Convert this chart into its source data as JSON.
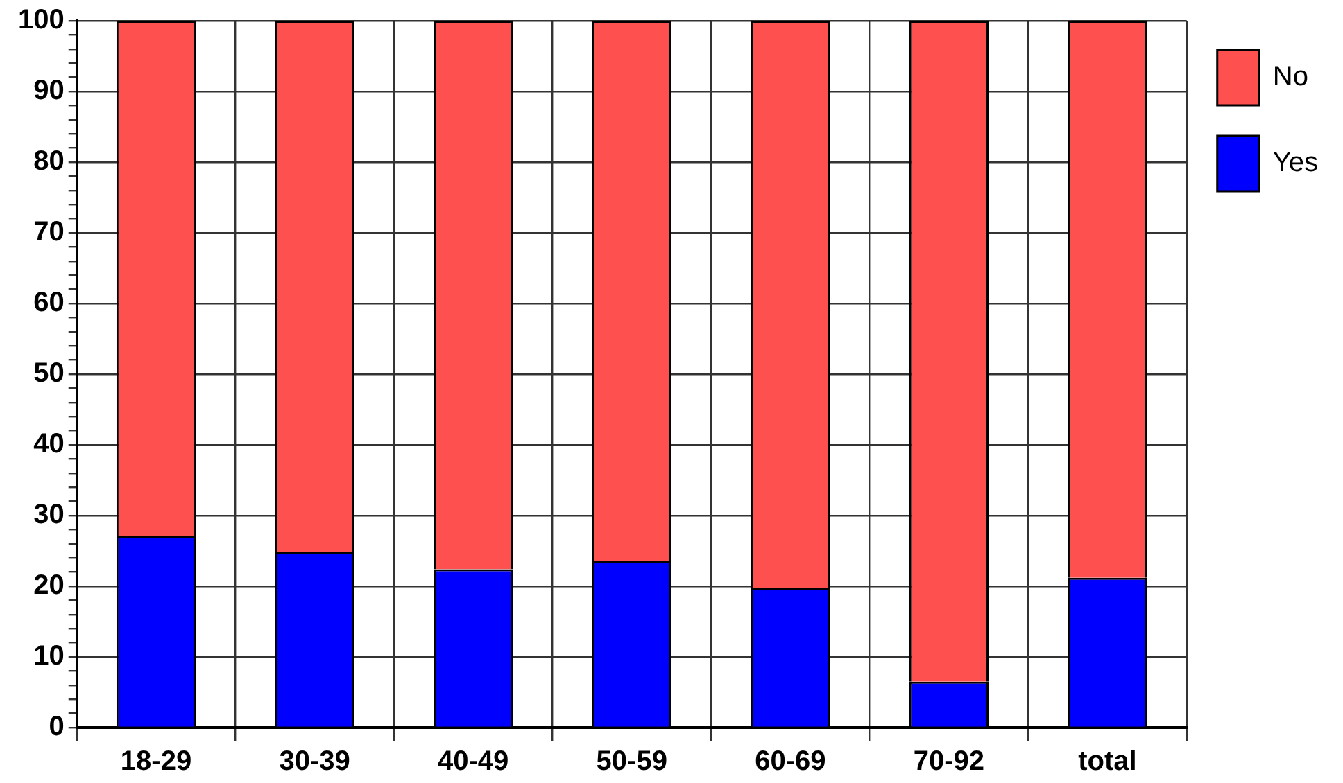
{
  "chart_data": {
    "type": "bar",
    "stacked": true,
    "categories": [
      "18-29",
      "30-39",
      "40-49",
      "50-59",
      "60-69",
      "70-92",
      "total"
    ],
    "series": [
      {
        "name": "Yes",
        "color": "#0000ff",
        "values": [
          27.1,
          24.9,
          22.4,
          23.6,
          19.8,
          6.5,
          21.2
        ]
      },
      {
        "name": "No",
        "color": "#ff5050",
        "values": [
          72.9,
          75.1,
          77.6,
          76.4,
          80.2,
          93.5,
          78.8
        ]
      }
    ],
    "ylim": [
      0,
      100
    ],
    "yticks": [
      0,
      {
        "value": 2,
        "label": null
      },
      {
        "value": 4,
        "label": null
      },
      {
        "value": 6,
        "label": null
      },
      {
        "value": 8,
        "label": null
      },
      10,
      {
        "value": 12,
        "label": null
      },
      {
        "value": 14,
        "label": null
      },
      {
        "value": 16,
        "label": null
      },
      {
        "value": 18,
        "label": null
      },
      20,
      {
        "value": 22,
        "label": null
      },
      {
        "value": 24,
        "label": null
      },
      {
        "value": 26,
        "label": null
      },
      {
        "value": 28,
        "label": null
      },
      30,
      {
        "value": 32,
        "label": null
      },
      {
        "value": 34,
        "label": null
      },
      {
        "value": 36,
        "label": null
      },
      {
        "value": 38,
        "label": null
      },
      40,
      {
        "value": 42,
        "label": null
      },
      {
        "value": 44,
        "label": null
      },
      {
        "value": 46,
        "label": null
      },
      {
        "value": 48,
        "label": null
      },
      50,
      {
        "value": 52,
        "label": null
      },
      {
        "value": 54,
        "label": null
      },
      {
        "value": 56,
        "label": null
      },
      {
        "value": 58,
        "label": null
      },
      60,
      {
        "value": 62,
        "label": null
      },
      {
        "value": 64,
        "label": null
      },
      {
        "value": 66,
        "label": null
      },
      {
        "value": 68,
        "label": null
      },
      70,
      {
        "value": 72,
        "label": null
      },
      {
        "value": 74,
        "label": null
      },
      {
        "value": 76,
        "label": null
      },
      {
        "value": 78,
        "label": null
      },
      80,
      {
        "value": 82,
        "label": null
      },
      {
        "value": 84,
        "label": null
      },
      {
        "value": 86,
        "label": null
      },
      {
        "value": 88,
        "label": null
      },
      90,
      {
        "value": 92,
        "label": null
      },
      {
        "value": 94,
        "label": null
      },
      {
        "value": 96,
        "label": null
      },
      {
        "value": 98,
        "label": null
      },
      100
    ],
    "grid": true,
    "legend": "top right"
  }
}
